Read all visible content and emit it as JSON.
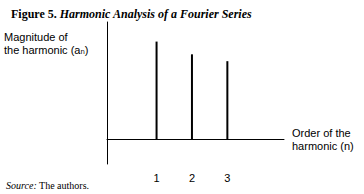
{
  "chart_data": {
    "type": "bar",
    "title": "Figure 5. Harmonic Analysis of a Fourier Series",
    "y_label": "Magnitude of\nthe harmonic (aₙ)",
    "x_label": "Order of the\nharmonic (n)",
    "source": "Source: The authors.",
    "x": [
      1,
      2,
      3
    ],
    "values": [
      1.0,
      0.87,
      0.8
    ],
    "color": "#000000",
    "xlim": [
      -0.4,
      4.6
    ],
    "xticks": [
      1,
      2,
      3
    ],
    "ylim": [
      -0.25,
      1.2
    ],
    "tick_labels": "x",
    "grid": false
  }
}
